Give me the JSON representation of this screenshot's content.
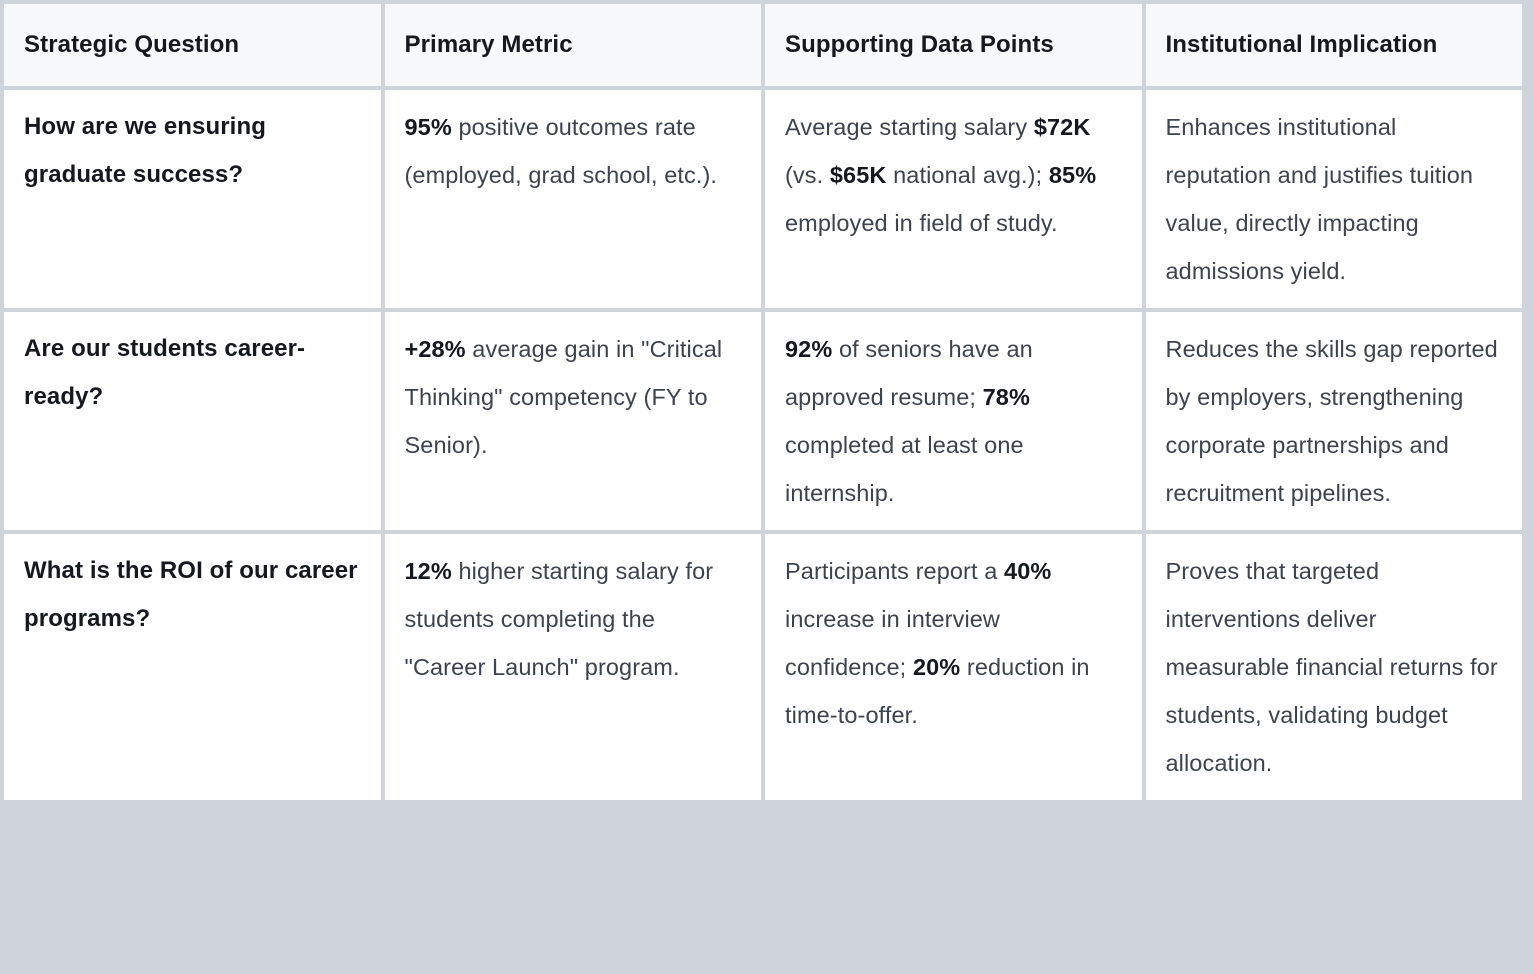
{
  "colors": {
    "page_gray": "#cfd4db",
    "header_bg": "#f7f8fa",
    "cell_bg": "#ffffff",
    "text": "#3d434d",
    "strong_text": "#15181e"
  },
  "table": {
    "headers": [
      "Strategic Question",
      "Primary Metric",
      "Supporting Data Points",
      "Institutional Implication"
    ],
    "rows": [
      {
        "question": "How are we ensuring graduate success?",
        "metric": [
          {
            "text": "95%",
            "bold": true
          },
          {
            "text": " positive outcomes rate (employed, grad school, etc.).",
            "bold": false
          }
        ],
        "data_points": [
          {
            "text": "Average starting salary ",
            "bold": false
          },
          {
            "text": "$72K",
            "bold": true
          },
          {
            "text": " (vs. ",
            "bold": false
          },
          {
            "text": "$65K",
            "bold": true
          },
          {
            "text": " national avg.); ",
            "bold": false
          },
          {
            "text": "85%",
            "bold": true
          },
          {
            "text": " employed in field of study.",
            "bold": false
          }
        ],
        "implication": [
          {
            "text": "Enhances institutional reputation and justifies tuition value, directly impacting admissions yield.",
            "bold": false
          }
        ]
      },
      {
        "question": "Are our students career-ready?",
        "metric": [
          {
            "text": "+28%",
            "bold": true
          },
          {
            "text": " average gain in \"Critical Thinking\" competency (FY to Senior).",
            "bold": false
          }
        ],
        "data_points": [
          {
            "text": "92%",
            "bold": true
          },
          {
            "text": " of seniors have an approved resume; ",
            "bold": false
          },
          {
            "text": "78%",
            "bold": true
          },
          {
            "text": " completed at least one internship.",
            "bold": false
          }
        ],
        "implication": [
          {
            "text": "Reduces the skills gap reported by employers, strengthening corporate partnerships and recruitment pipelines.",
            "bold": false
          }
        ]
      },
      {
        "question": "What is the ROI of our career programs?",
        "metric": [
          {
            "text": "12%",
            "bold": true
          },
          {
            "text": " higher starting salary for students completing the \"Career Launch\" program.",
            "bold": false
          }
        ],
        "data_points": [
          {
            "text": "Participants report a ",
            "bold": false
          },
          {
            "text": "40%",
            "bold": true
          },
          {
            "text": " increase in interview confidence; ",
            "bold": false
          },
          {
            "text": "20%",
            "bold": true
          },
          {
            "text": " reduction in time-to-offer.",
            "bold": false
          }
        ],
        "implication": [
          {
            "text": "Proves that targeted interventions deliver measurable financial returns for students, validating budget allocation.",
            "bold": false
          }
        ]
      }
    ]
  }
}
